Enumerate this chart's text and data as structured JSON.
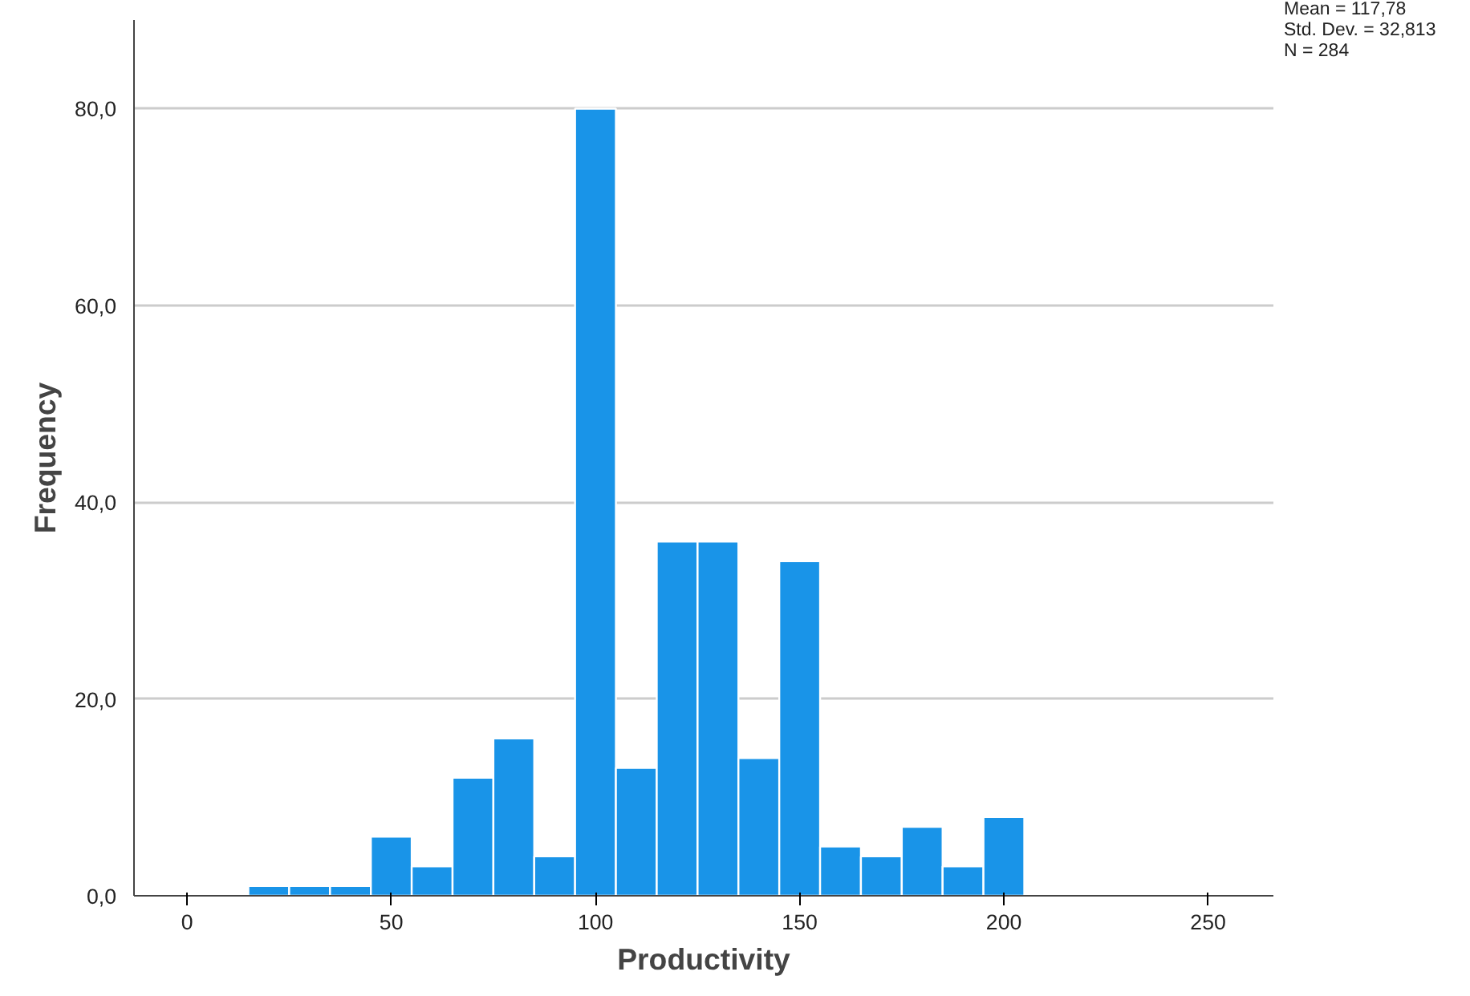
{
  "chart_data": {
    "type": "histogram",
    "xlabel": "Productivity",
    "ylabel": "Frequency",
    "bins": [
      15,
      25,
      35,
      45,
      55,
      65,
      75,
      85,
      95,
      105,
      115,
      125,
      135,
      145,
      155,
      165,
      175,
      185,
      195,
      205
    ],
    "values": [
      1,
      1,
      1,
      6,
      3,
      12,
      16,
      4,
      80,
      13,
      36,
      36,
      14,
      34,
      5,
      4,
      7,
      3,
      8
    ],
    "color": "#1994e8",
    "xlim": [
      -13,
      266
    ],
    "xticks": [
      0,
      50,
      100,
      150,
      200,
      250
    ],
    "ylim": [
      0,
      89
    ],
    "yticks": [
      {
        "value": 0,
        "label": "0,0"
      },
      {
        "value": 20,
        "label": "20,0"
      },
      {
        "value": 40,
        "label": "40,0"
      },
      {
        "value": 60,
        "label": "60,0"
      },
      {
        "value": 80,
        "label": "80,0"
      }
    ],
    "grid": "y",
    "annotations": [
      "Mean = 117,78",
      "Std. Dev. = 32,813",
      "N = 284"
    ]
  }
}
